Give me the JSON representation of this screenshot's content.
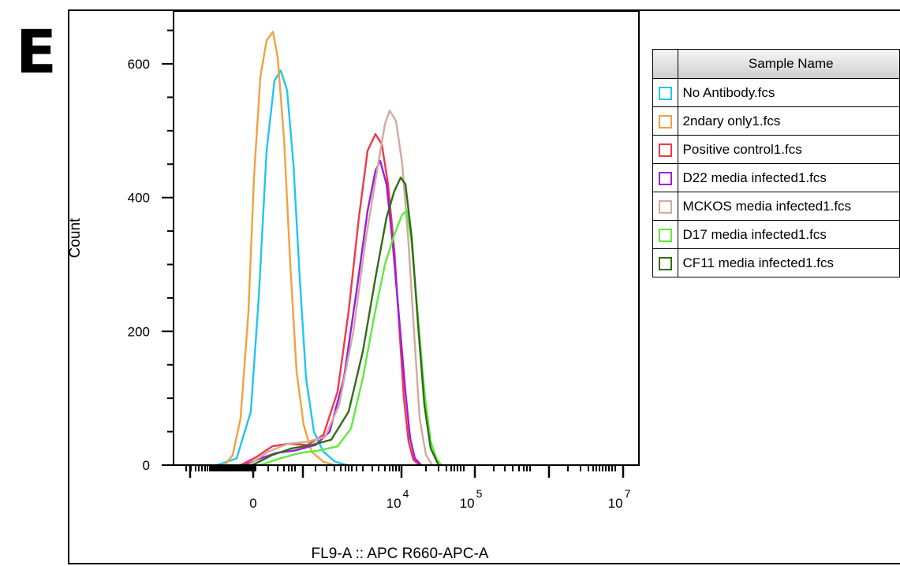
{
  "panel_label": "E",
  "legend": {
    "header": "Sample Name",
    "items": [
      {
        "name": "No Antibody.fcs",
        "color": "#22c4f0"
      },
      {
        "name": "2ndary only1.fcs",
        "color": "#f5a040"
      },
      {
        "name": "Positive control1.fcs",
        "color": "#f03848"
      },
      {
        "name": "D22 media infected1.fcs",
        "color": "#9a1ee0"
      },
      {
        "name": "MCKOS media infected1.fcs",
        "color": "#d4a8a0"
      },
      {
        "name": "D17 media infected1.fcs",
        "color": "#5cec3c"
      },
      {
        "name": "CF11 media infected1.fcs",
        "color": "#2e6e14"
      }
    ]
  },
  "chart_data": {
    "type": "line",
    "xlabel": "FL9-A :: APC R660-APC-A",
    "ylabel": "Count",
    "ylim": [
      0,
      650
    ],
    "x_scale": "biexponential",
    "x_ticks": [
      {
        "label": "0"
      },
      {
        "label": "10",
        "exp": "4"
      },
      {
        "label": "10",
        "exp": "5"
      },
      {
        "label": "10",
        "exp": "7"
      }
    ],
    "y_ticks": [
      "0",
      "200",
      "400",
      "600"
    ],
    "y_tick_values": [
      0,
      200,
      400,
      600
    ],
    "grid": false,
    "legend_position": "right",
    "series": [
      {
        "name": "No Antibody.fcs",
        "color": "#22c4f0",
        "points": [
          [
            275,
            0
          ],
          [
            300,
            10
          ],
          [
            318,
            80
          ],
          [
            328,
            250
          ],
          [
            338,
            470
          ],
          [
            348,
            575
          ],
          [
            356,
            590
          ],
          [
            364,
            560
          ],
          [
            372,
            450
          ],
          [
            380,
            280
          ],
          [
            388,
            130
          ],
          [
            398,
            50
          ],
          [
            410,
            20
          ],
          [
            425,
            5
          ],
          [
            440,
            0
          ]
        ]
      },
      {
        "name": "2ndary only1.fcs",
        "color": "#f5a040",
        "points": [
          [
            285,
            0
          ],
          [
            295,
            15
          ],
          [
            305,
            70
          ],
          [
            315,
            230
          ],
          [
            322,
            430
          ],
          [
            330,
            580
          ],
          [
            338,
            635
          ],
          [
            346,
            648
          ],
          [
            352,
            610
          ],
          [
            360,
            490
          ],
          [
            368,
            300
          ],
          [
            376,
            140
          ],
          [
            385,
            60
          ],
          [
            395,
            20
          ],
          [
            410,
            5
          ],
          [
            425,
            0
          ]
        ]
      },
      {
        "name": "Positive control1.fcs",
        "color": "#f03848",
        "points": [
          [
            305,
            0
          ],
          [
            325,
            12
          ],
          [
            345,
            28
          ],
          [
            365,
            32
          ],
          [
            390,
            30
          ],
          [
            410,
            45
          ],
          [
            428,
            110
          ],
          [
            442,
            230
          ],
          [
            455,
            370
          ],
          [
            466,
            470
          ],
          [
            476,
            495
          ],
          [
            484,
            480
          ],
          [
            492,
            420
          ],
          [
            500,
            320
          ],
          [
            506,
            210
          ],
          [
            512,
            100
          ],
          [
            518,
            35
          ],
          [
            524,
            8
          ],
          [
            532,
            0
          ]
        ]
      },
      {
        "name": "D22 media infected1.fcs",
        "color": "#9a1ee0",
        "points": [
          [
            310,
            0
          ],
          [
            330,
            10
          ],
          [
            350,
            18
          ],
          [
            375,
            22
          ],
          [
            400,
            30
          ],
          [
            418,
            50
          ],
          [
            436,
            130
          ],
          [
            452,
            260
          ],
          [
            466,
            380
          ],
          [
            476,
            440
          ],
          [
            482,
            455
          ],
          [
            490,
            420
          ],
          [
            498,
            330
          ],
          [
            506,
            220
          ],
          [
            514,
            110
          ],
          [
            520,
            40
          ],
          [
            526,
            10
          ],
          [
            534,
            0
          ]
        ]
      },
      {
        "name": "MCKOS media infected1.fcs",
        "color": "#d4a8a0",
        "points": [
          [
            315,
            0
          ],
          [
            340,
            20
          ],
          [
            365,
            32
          ],
          [
            390,
            35
          ],
          [
            412,
            42
          ],
          [
            430,
            90
          ],
          [
            448,
            200
          ],
          [
            464,
            340
          ],
          [
            478,
            440
          ],
          [
            488,
            510
          ],
          [
            494,
            530
          ],
          [
            502,
            515
          ],
          [
            510,
            450
          ],
          [
            518,
            330
          ],
          [
            526,
            180
          ],
          [
            532,
            70
          ],
          [
            540,
            15
          ],
          [
            548,
            0
          ]
        ]
      },
      {
        "name": "D17 media infected1.fcs",
        "color": "#5cec3c",
        "points": [
          [
            330,
            0
          ],
          [
            355,
            10
          ],
          [
            380,
            18
          ],
          [
            405,
            22
          ],
          [
            428,
            28
          ],
          [
            445,
            55
          ],
          [
            460,
            130
          ],
          [
            474,
            220
          ],
          [
            488,
            300
          ],
          [
            500,
            345
          ],
          [
            510,
            375
          ],
          [
            516,
            380
          ],
          [
            522,
            330
          ],
          [
            530,
            220
          ],
          [
            538,
            110
          ],
          [
            546,
            35
          ],
          [
            554,
            8
          ],
          [
            560,
            0
          ]
        ]
      },
      {
        "name": "CF11 media infected1.fcs",
        "color": "#2e6e14",
        "points": [
          [
            320,
            0
          ],
          [
            345,
            15
          ],
          [
            370,
            25
          ],
          [
            395,
            30
          ],
          [
            420,
            38
          ],
          [
            442,
            80
          ],
          [
            460,
            170
          ],
          [
            476,
            280
          ],
          [
            490,
            370
          ],
          [
            500,
            410
          ],
          [
            508,
            430
          ],
          [
            514,
            420
          ],
          [
            522,
            340
          ],
          [
            530,
            210
          ],
          [
            538,
            90
          ],
          [
            546,
            25
          ],
          [
            556,
            0
          ]
        ]
      }
    ]
  }
}
